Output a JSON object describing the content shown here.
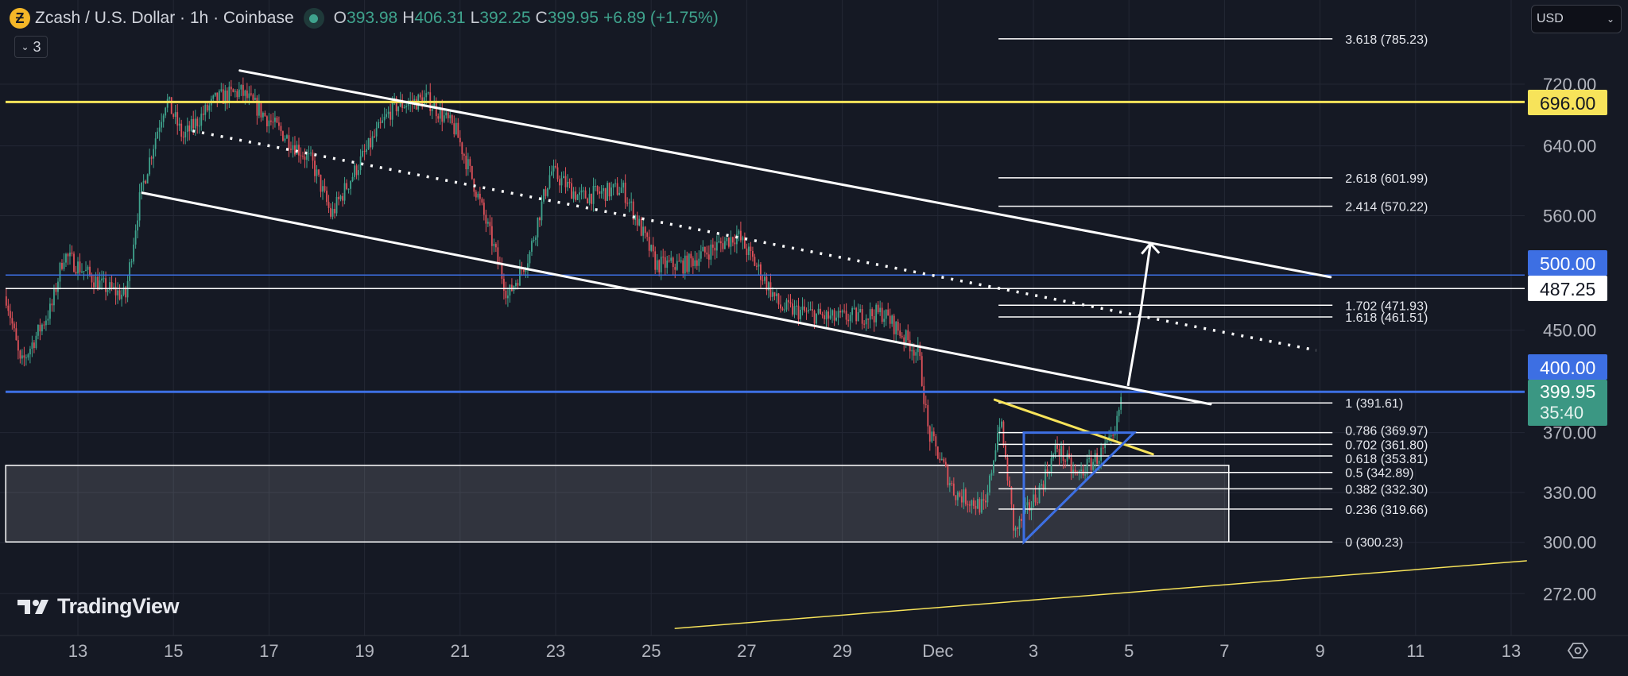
{
  "header": {
    "symbol_name": "Zcash / U.S. Dollar · 1h · Coinbase",
    "coin_glyph": "Ƶ",
    "open_label": "O",
    "open": "393.98",
    "high_label": "H",
    "high": "406.31",
    "low_label": "L",
    "low": "392.25",
    "close_label": "C",
    "close": "399.95",
    "change": "+6.89 (+1.75%)",
    "indicators_count": "3"
  },
  "currency_select": "USD",
  "logo": "TradingView",
  "icons": [
    "zcash-coin-icon",
    "market-status-icon",
    "chevron-down-icon",
    "tradingview-logo-icon",
    "settings-icon"
  ],
  "colors": {
    "background": "#151924",
    "grid": "#232734",
    "up": "#3fa38d",
    "down": "#e0525a",
    "yellow": "#f7e35a",
    "blue": "#3d6fe3",
    "white": "#ffffff",
    "axis_text": "#b2b5be",
    "price_badge": "#3b9783"
  },
  "chart_data": {
    "type": "candlestick",
    "title": "Zcash / U.S. Dollar · 1h · Coinbase",
    "interval": "1h",
    "y_scale": "log",
    "ylim": [
      251,
      845
    ],
    "xlim_days": [
      11.49,
      44.5
    ],
    "y_ticks": [
      "720.00",
      "640.00",
      "560.00",
      "450.00",
      "370.00",
      "330.00",
      "300.00",
      "272.00"
    ],
    "x_ticks": [
      {
        "label": "13",
        "day": 13
      },
      {
        "label": "15",
        "day": 15
      },
      {
        "label": "17",
        "day": 17
      },
      {
        "label": "19",
        "day": 19
      },
      {
        "label": "21",
        "day": 21
      },
      {
        "label": "23",
        "day": 23
      },
      {
        "label": "25",
        "day": 25
      },
      {
        "label": "27",
        "day": 27
      },
      {
        "label": "29",
        "day": 29
      },
      {
        "label": "Dec",
        "day": 31
      },
      {
        "label": "3",
        "day": 33
      },
      {
        "label": "5",
        "day": 35
      },
      {
        "label": "7",
        "day": 37
      },
      {
        "label": "9",
        "day": 39
      },
      {
        "label": "11",
        "day": 41
      },
      {
        "label": "13",
        "day": 43
      }
    ],
    "price_path": [
      [
        11.5,
        480
      ],
      [
        11.8,
        420
      ],
      [
        12.45,
        470
      ],
      [
        12.7,
        520
      ],
      [
        13.5,
        490
      ],
      [
        14.0,
        480
      ],
      [
        14.3,
        580
      ],
      [
        14.85,
        700
      ],
      [
        15.2,
        650
      ],
      [
        15.9,
        700
      ],
      [
        16.4,
        710
      ],
      [
        17.2,
        660
      ],
      [
        17.9,
        620
      ],
      [
        18.3,
        560
      ],
      [
        18.9,
        620
      ],
      [
        19.6,
        690
      ],
      [
        20.3,
        700
      ],
      [
        20.9,
        660
      ],
      [
        21.5,
        560
      ],
      [
        22.0,
        480
      ],
      [
        22.45,
        520
      ],
      [
        22.9,
        610
      ],
      [
        23.5,
        580
      ],
      [
        24.4,
        590
      ],
      [
        25.1,
        510
      ],
      [
        25.7,
        510
      ],
      [
        26.8,
        540
      ],
      [
        27.7,
        470
      ],
      [
        28.8,
        460
      ],
      [
        29.85,
        465
      ],
      [
        30.6,
        430
      ],
      [
        30.8,
        370
      ],
      [
        31.35,
        330
      ],
      [
        32.0,
        320
      ],
      [
        32.3,
        380
      ],
      [
        32.6,
        305
      ],
      [
        33.1,
        330
      ],
      [
        33.5,
        360
      ],
      [
        33.9,
        340
      ],
      [
        34.4,
        355
      ],
      [
        34.7,
        365
      ],
      [
        34.85,
        399.95
      ]
    ],
    "last_price": "399.95",
    "countdown": "35:40",
    "price_badges": [
      {
        "value": "696.00",
        "price": 696,
        "style": "yellow"
      },
      {
        "value": "500.00",
        "price": 500,
        "style": "blue"
      },
      {
        "value": "487.25",
        "price": 487.25,
        "style": "white"
      },
      {
        "value": "400.00",
        "price": 400,
        "style": "blue"
      }
    ],
    "horizontal_levels": [
      {
        "price": 696,
        "style": "yellow"
      },
      {
        "price": 500,
        "style": "blue"
      },
      {
        "price": 487.25,
        "style": "white"
      },
      {
        "price": 400,
        "style": "blue"
      }
    ],
    "fib_range_days": [
      32.27,
      39.26
    ],
    "fib_levels": [
      {
        "label": "3.618 (785.23)",
        "price": 785.23
      },
      {
        "label": "2.618 (601.99)",
        "price": 601.99
      },
      {
        "label": "2.414 (570.22)",
        "price": 570.22
      },
      {
        "label": "1.702 (471.93)",
        "price": 471.93
      },
      {
        "label": "1.618 (461.51)",
        "price": 461.51
      },
      {
        "label": "1 (391.61)",
        "price": 391.61
      },
      {
        "label": "0.786 (369.97)",
        "price": 369.97
      },
      {
        "label": "0.702 (361.80)",
        "price": 361.8
      },
      {
        "label": "0.618 (353.81)",
        "price": 353.81
      },
      {
        "label": "0.5 (342.89)",
        "price": 342.89
      },
      {
        "label": "0.382 (332.30)",
        "price": 332.3
      },
      {
        "label": "0.236 (319.66)",
        "price": 319.66
      },
      {
        "label": "0 (300.23)",
        "price": 300.23
      }
    ],
    "trendlines": [
      {
        "name": "channel-upper",
        "style": "white",
        "points": [
          [
            16.39,
            739
          ],
          [
            39.22,
            498
          ]
        ]
      },
      {
        "name": "channel-lower",
        "style": "white",
        "points": [
          [
            14.35,
            585
          ],
          [
            36.71,
            390.6
          ]
        ]
      },
      {
        "name": "channel-mid",
        "style": "white-dotted",
        "points": [
          [
            15.4,
            658.6
          ],
          [
            38.92,
            433
          ]
        ]
      },
      {
        "name": "wedge-top",
        "style": "yellow",
        "points": [
          [
            32.19,
            394
          ],
          [
            35.5,
            355
          ]
        ]
      },
      {
        "name": "long-support",
        "style": "yellow-thin",
        "points": [
          [
            25.5,
            254.5
          ],
          [
            43.32,
            289.6
          ]
        ]
      }
    ],
    "projection_arrow": [
      [
        34.98,
        404.5
      ],
      [
        35.23,
        462
      ],
      [
        35.45,
        531
      ]
    ],
    "triangle": [
      [
        32.8,
        369.97
      ],
      [
        32.8,
        300.23
      ],
      [
        35.11,
        369.97
      ]
    ],
    "range_box": {
      "days": [
        11.49,
        37.09
      ],
      "prices": [
        300.23,
        347.6
      ]
    }
  }
}
